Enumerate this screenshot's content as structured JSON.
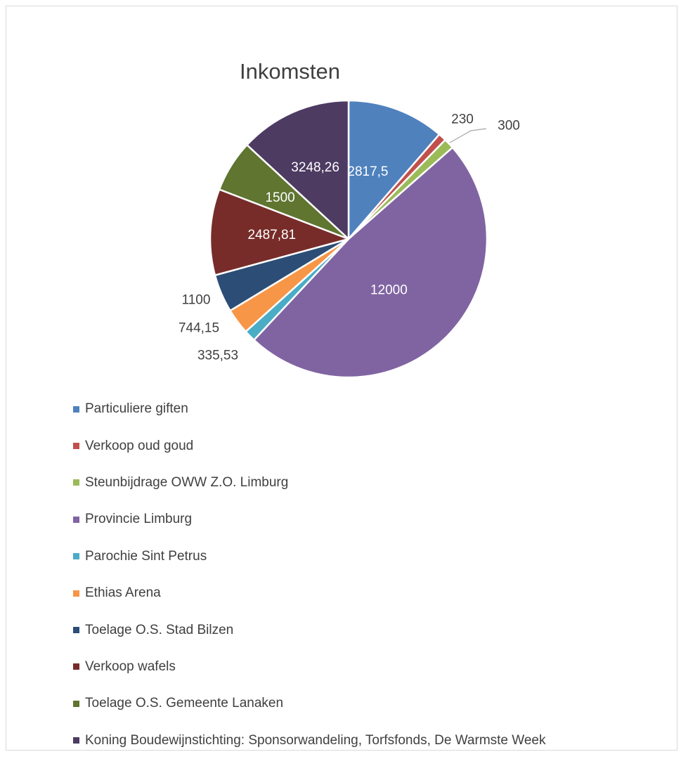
{
  "chart_data": {
    "type": "pie",
    "title": "Inkomsten",
    "legend_position": "bottom",
    "slices": [
      {
        "label": "Particuliere giften",
        "value": 2817.5,
        "value_label": "2817,5",
        "color": "#4F81BD"
      },
      {
        "label": "Verkoop oud goud",
        "value": 230,
        "value_label": "230",
        "color": "#C0504D"
      },
      {
        "label": "Steunbijdrage OWW Z.O. Limburg",
        "value": 300,
        "value_label": "300",
        "color": "#9BBB59"
      },
      {
        "label": "Provincie Limburg",
        "value": 12000,
        "value_label": "12000",
        "color": "#8064A2"
      },
      {
        "label": "Parochie Sint Petrus",
        "value": 335.53,
        "value_label": "335,53",
        "color": "#4BACC6"
      },
      {
        "label": "Ethias Arena",
        "value": 744.15,
        "value_label": "744,15",
        "color": "#F79646"
      },
      {
        "label": "Toelage O.S. Stad Bilzen",
        "value": 1100,
        "value_label": "1100",
        "color": "#2C4D75"
      },
      {
        "label": "Verkoop wafels",
        "value": 2487.81,
        "value_label": "2487,81",
        "color": "#772C2A"
      },
      {
        "label": "Toelage O.S. Gemeente Lanaken",
        "value": 1500,
        "value_label": "1500",
        "color": "#5F7530"
      },
      {
        "label": "Koning Boudewijnstichting: Sponsorwandeling, Torfsfonds, De Warmste Week",
        "value": 3248.26,
        "value_label": "3248,26",
        "color": "#4D3B62"
      }
    ]
  }
}
